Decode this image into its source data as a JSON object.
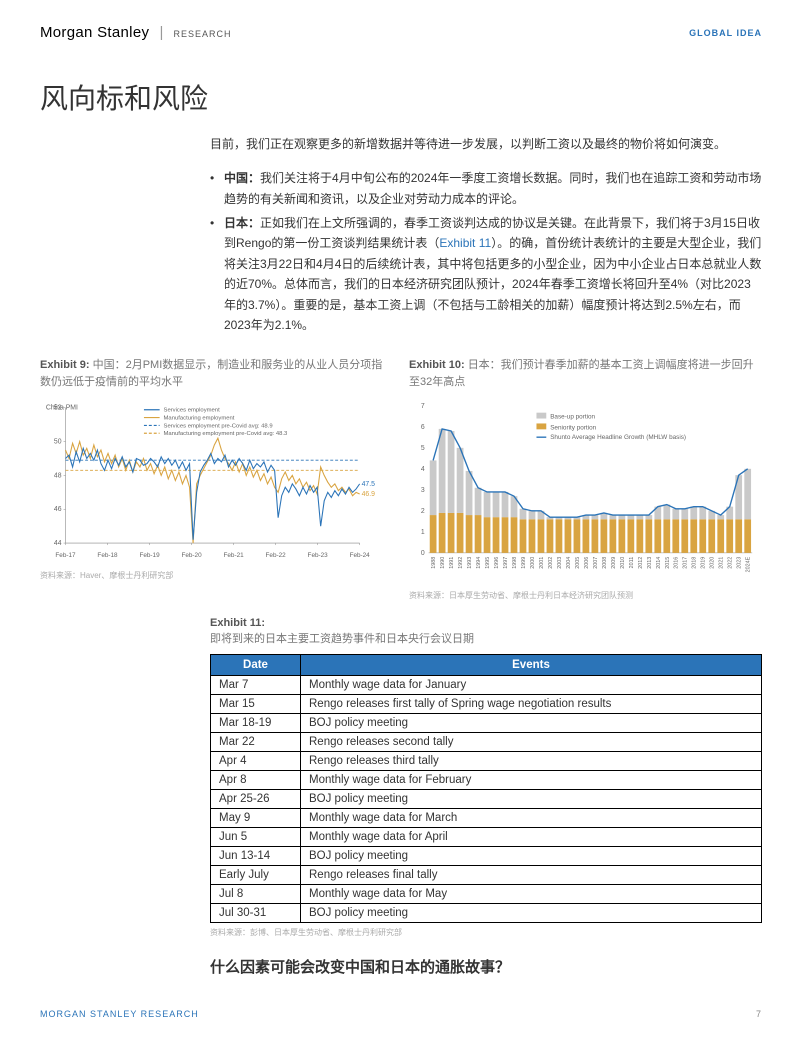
{
  "header": {
    "brand_main": "Morgan Stanley",
    "brand_sub": "RESEARCH",
    "global_idea": "GLOBAL IDEA"
  },
  "section_title": "风向标和风险",
  "intro": {
    "lead": "目前，我们正在观察更多的新增数据并等待进一步发展，以判断工资以及最终的物价将如何演变。",
    "bullets": [
      {
        "b": "中国：",
        "t": "我们关注将于4月中旬公布的2024年一季度工资增长数据。同时，我们也在追踪工资和劳动市场趋势的有关新闻和资讯，以及企业对劳动力成本的评论。"
      },
      {
        "b": "日本：",
        "t1": "正如我们在上文所强调的，春季工资谈判达成的协议是关键。在此背景下，我们将于3月15日收到Rengo的第一份工资谈判结果统计表（",
        "link": "Exhibit 11",
        "t2": "）。的确，首份统计表统计的主要是大型企业，我们将关注3月22日和4月4日的后续统计表，其中将包括更多的小型企业，因为中小企业占日本总就业人数的近70%。总体而言，我们的日本经济研究团队预计，2024年春季工资增长将回升至4%（对比2023年的3.7%）。重要的是，基本工资上调（不包括与工龄相关的加薪）幅度预计将达到2.5%左右，而2023年为2.1%。"
      }
    ]
  },
  "exhibit9": {
    "label": "Exhibit 9:",
    "caption": "中国：2月PMI数据显示，制造业和服务业的从业人员分项指数仍远低于疫情前的平均水平",
    "type": "line",
    "chart_title": "China PMI",
    "legend": {
      "services": "Services employment",
      "manufacturing": "Manufacturing employment",
      "services_avg": "Services employment pre-Covid avg: 48.9",
      "manufacturing_avg": "Manufacturing employment pre-Covid avg: 48.3"
    },
    "colors": {
      "services": "#2b74b8",
      "manufacturing": "#d9a441",
      "services_avg": "#2b74b8",
      "manufacturing_avg": "#d9a441",
      "axis": "#888",
      "grid": "#e5e5e5",
      "bg": "#ffffff"
    },
    "x_labels": [
      "Feb-17",
      "Feb-18",
      "Feb-19",
      "Feb-20",
      "Feb-21",
      "Feb-22",
      "Feb-23",
      "Feb-24"
    ],
    "ylim": [
      44,
      52
    ],
    "yticks": [
      44,
      46,
      48,
      50,
      52
    ],
    "services_avg_y": 48.9,
    "manufacturing_avg_y": 48.3,
    "end_labels": {
      "services": "47.5",
      "manufacturing": "46.9"
    },
    "services_data": [
      49.0,
      49.2,
      48.5,
      49.4,
      48.8,
      49.6,
      49.0,
      49.3,
      48.9,
      49.5,
      48.7,
      48.3,
      48.9,
      48.4,
      49.0,
      48.6,
      49.1,
      48.5,
      48.8,
      48.2,
      49.0,
      48.9,
      48.6,
      48.7,
      49.0,
      48.8,
      48.5,
      49.1,
      48.7,
      49.0,
      48.6,
      48.9,
      48.4,
      48.8,
      48.3,
      48.7,
      44.2,
      47.0,
      48.2,
      48.6,
      48.9,
      49.3,
      48.7,
      49.0,
      48.8,
      49.2,
      48.5,
      48.9,
      48.6,
      49.0,
      48.7,
      48.3,
      48.9,
      48.4,
      48.7,
      48.5,
      48.8,
      48.2,
      48.6,
      48.3,
      45.5,
      46.8,
      47.3,
      47.0,
      47.5,
      47.2,
      46.8,
      47.3,
      46.9,
      47.4,
      47.0,
      47.3,
      45.0,
      46.5,
      47.0,
      46.7,
      47.1,
      46.8,
      47.2,
      46.9,
      47.3,
      47.0,
      47.2,
      47.5
    ],
    "manufacturing_data": [
      49.5,
      49.0,
      49.9,
      49.3,
      50.0,
      49.2,
      49.6,
      49.0,
      49.8,
      49.1,
      49.5,
      48.8,
      49.3,
      48.7,
      49.2,
      48.5,
      49.0,
      48.3,
      48.9,
      48.2,
      48.8,
      48.5,
      49.0,
      48.3,
      48.7,
      48.1,
      48.6,
      48.0,
      48.5,
      47.8,
      48.3,
      47.7,
      48.2,
      47.5,
      48.0,
      47.3,
      44.0,
      47.5,
      48.0,
      48.4,
      48.8,
      49.2,
      49.8,
      50.2,
      49.5,
      49.0,
      48.7,
      48.3,
      48.8,
      48.2,
      48.7,
      48.0,
      48.5,
      47.9,
      48.3,
      47.7,
      48.1,
      47.5,
      47.9,
      47.3,
      47.0,
      47.8,
      48.2,
      47.7,
      48.0,
      47.5,
      47.8,
      47.3,
      47.6,
      47.1,
      47.4,
      46.9,
      48.5,
      48.0,
      47.6,
      47.3,
      47.5,
      47.1,
      47.3,
      47.0,
      47.2,
      46.8,
      47.0,
      46.9
    ],
    "source": "资料来源：Haver、摩根士丹利研究部"
  },
  "exhibit10": {
    "label": "Exhibit 10:",
    "caption": "日本：我们预计春季加薪的基本工资上调幅度将进一步回升至32年高点",
    "type": "stacked-bar-line",
    "legend": {
      "base": "Base-up portion",
      "seniority": "Seniority portion",
      "line": "Shunto Average Headline Growth (MHLW basis)"
    },
    "colors": {
      "base": "#c9c9c9",
      "seniority": "#d9a441",
      "line": "#2b74b8",
      "axis": "#888",
      "bg": "#ffffff"
    },
    "ylim": [
      0,
      7
    ],
    "yticks": [
      0,
      1,
      2,
      3,
      4,
      5,
      6,
      7
    ],
    "years": [
      "1988",
      "1990",
      "1991",
      "1992",
      "1993",
      "1994",
      "1995",
      "1996",
      "1997",
      "1998",
      "1999",
      "2000",
      "2001",
      "2002",
      "2003",
      "2004",
      "2005",
      "2006",
      "2007",
      "2008",
      "2009",
      "2010",
      "2011",
      "2012",
      "2013",
      "2014",
      "2015",
      "2016",
      "2017",
      "2018",
      "2019",
      "2020",
      "2021",
      "2022",
      "2023",
      "2024E"
    ],
    "seniority": [
      1.8,
      1.9,
      1.9,
      1.9,
      1.8,
      1.8,
      1.7,
      1.7,
      1.7,
      1.7,
      1.6,
      1.6,
      1.6,
      1.6,
      1.6,
      1.6,
      1.6,
      1.6,
      1.6,
      1.6,
      1.6,
      1.6,
      1.6,
      1.6,
      1.6,
      1.6,
      1.6,
      1.6,
      1.6,
      1.6,
      1.6,
      1.6,
      1.6,
      1.6,
      1.6,
      1.6
    ],
    "base": [
      2.6,
      4.0,
      3.9,
      3.1,
      2.1,
      1.3,
      1.2,
      1.2,
      1.2,
      1.0,
      0.5,
      0.4,
      0.4,
      0.1,
      0.1,
      0.1,
      0.1,
      0.2,
      0.2,
      0.3,
      0.2,
      0.2,
      0.2,
      0.2,
      0.2,
      0.6,
      0.7,
      0.5,
      0.5,
      0.6,
      0.6,
      0.4,
      0.2,
      0.6,
      2.1,
      2.4
    ],
    "line": [
      4.4,
      5.9,
      5.8,
      5.0,
      3.9,
      3.1,
      2.9,
      2.9,
      2.9,
      2.7,
      2.1,
      2.0,
      2.0,
      1.7,
      1.7,
      1.7,
      1.7,
      1.8,
      1.8,
      1.9,
      1.8,
      1.8,
      1.8,
      1.8,
      1.8,
      2.2,
      2.3,
      2.1,
      2.1,
      2.2,
      2.2,
      2.0,
      1.8,
      2.2,
      3.7,
      4.0
    ],
    "source": "资料来源：日本厚生劳动省、摩根士丹利日本经济研究团队预测"
  },
  "exhibit11": {
    "label": "Exhibit 11:",
    "caption": "即将到来的日本主要工资趋势事件和日本央行会议日期",
    "headers": [
      "Date",
      "Events"
    ],
    "rows": [
      [
        "Mar 7",
        "Monthly wage data for January"
      ],
      [
        "Mar 15",
        "Rengo releases first tally of Spring wage negotiation results"
      ],
      [
        "Mar 18-19",
        "BOJ policy meeting"
      ],
      [
        "Mar 22",
        "Rengo releases second tally"
      ],
      [
        "Apr 4",
        "Rengo releases third tally"
      ],
      [
        "Apr 8",
        "Monthly wage data for February"
      ],
      [
        "Apr 25-26",
        "BOJ policy meeting"
      ],
      [
        "May 9",
        "Monthly wage data for March"
      ],
      [
        "Jun 5",
        "Monthly wage data for April"
      ],
      [
        "Jun 13-14",
        "BOJ policy meeting"
      ],
      [
        "Early July",
        "Rengo releases final tally"
      ],
      [
        "Jul 8",
        "Monthly wage data for May"
      ],
      [
        "Jul 30-31",
        "BOJ policy meeting"
      ]
    ],
    "source": "资料来源：彭博、日本厚生劳动省、摩根士丹利研究部"
  },
  "closing_question": "什么因素可能会改变中国和日本的通胀故事？",
  "footer": {
    "left": "MORGAN STANLEY RESEARCH",
    "page": "7"
  }
}
